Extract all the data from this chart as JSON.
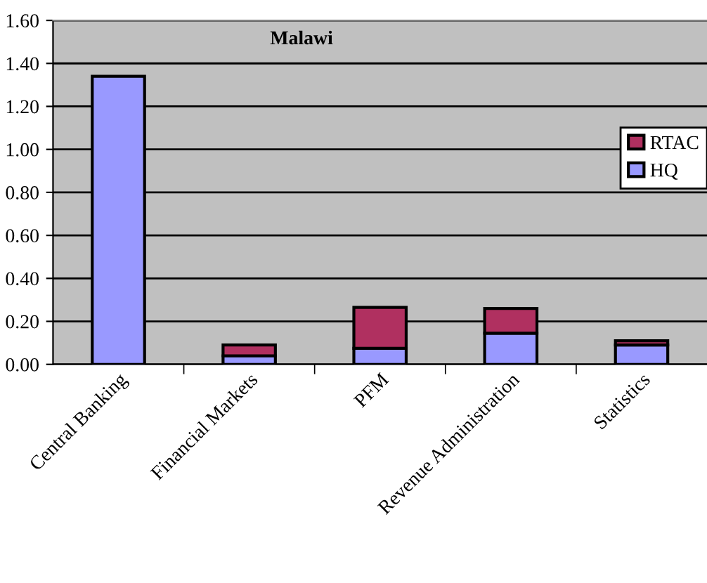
{
  "chart_data": {
    "type": "bar",
    "title": "Malawi",
    "stacked": true,
    "categories": [
      "Central Banking",
      "Financial Markets",
      "PFM",
      "Revenue Administration",
      "Statistics"
    ],
    "series": [
      {
        "name": "HQ",
        "color": "#9999ff",
        "values": [
          1.34,
          0.04,
          0.075,
          0.145,
          0.09
        ]
      },
      {
        "name": "RTAC",
        "color": "#b03060",
        "values": [
          null,
          0.05,
          0.19,
          0.115,
          0.02
        ]
      }
    ],
    "ylim": [
      0,
      1.6
    ],
    "yticks": [
      {
        "value": 0,
        "label": "0.00"
      },
      {
        "value": 0.2,
        "label": "0.20"
      },
      {
        "value": 0.4,
        "label": "0.40"
      },
      {
        "value": 0.6,
        "label": "0.60"
      },
      {
        "value": 0.8,
        "label": "0.80"
      },
      {
        "value": 1,
        "label": "1.00"
      },
      {
        "value": 1.2,
        "label": "1.20"
      },
      {
        "value": 1.4,
        "label": "1.40"
      },
      {
        "value": 1.6,
        "label": "1.60"
      }
    ],
    "grid": "y",
    "legend": "right"
  }
}
